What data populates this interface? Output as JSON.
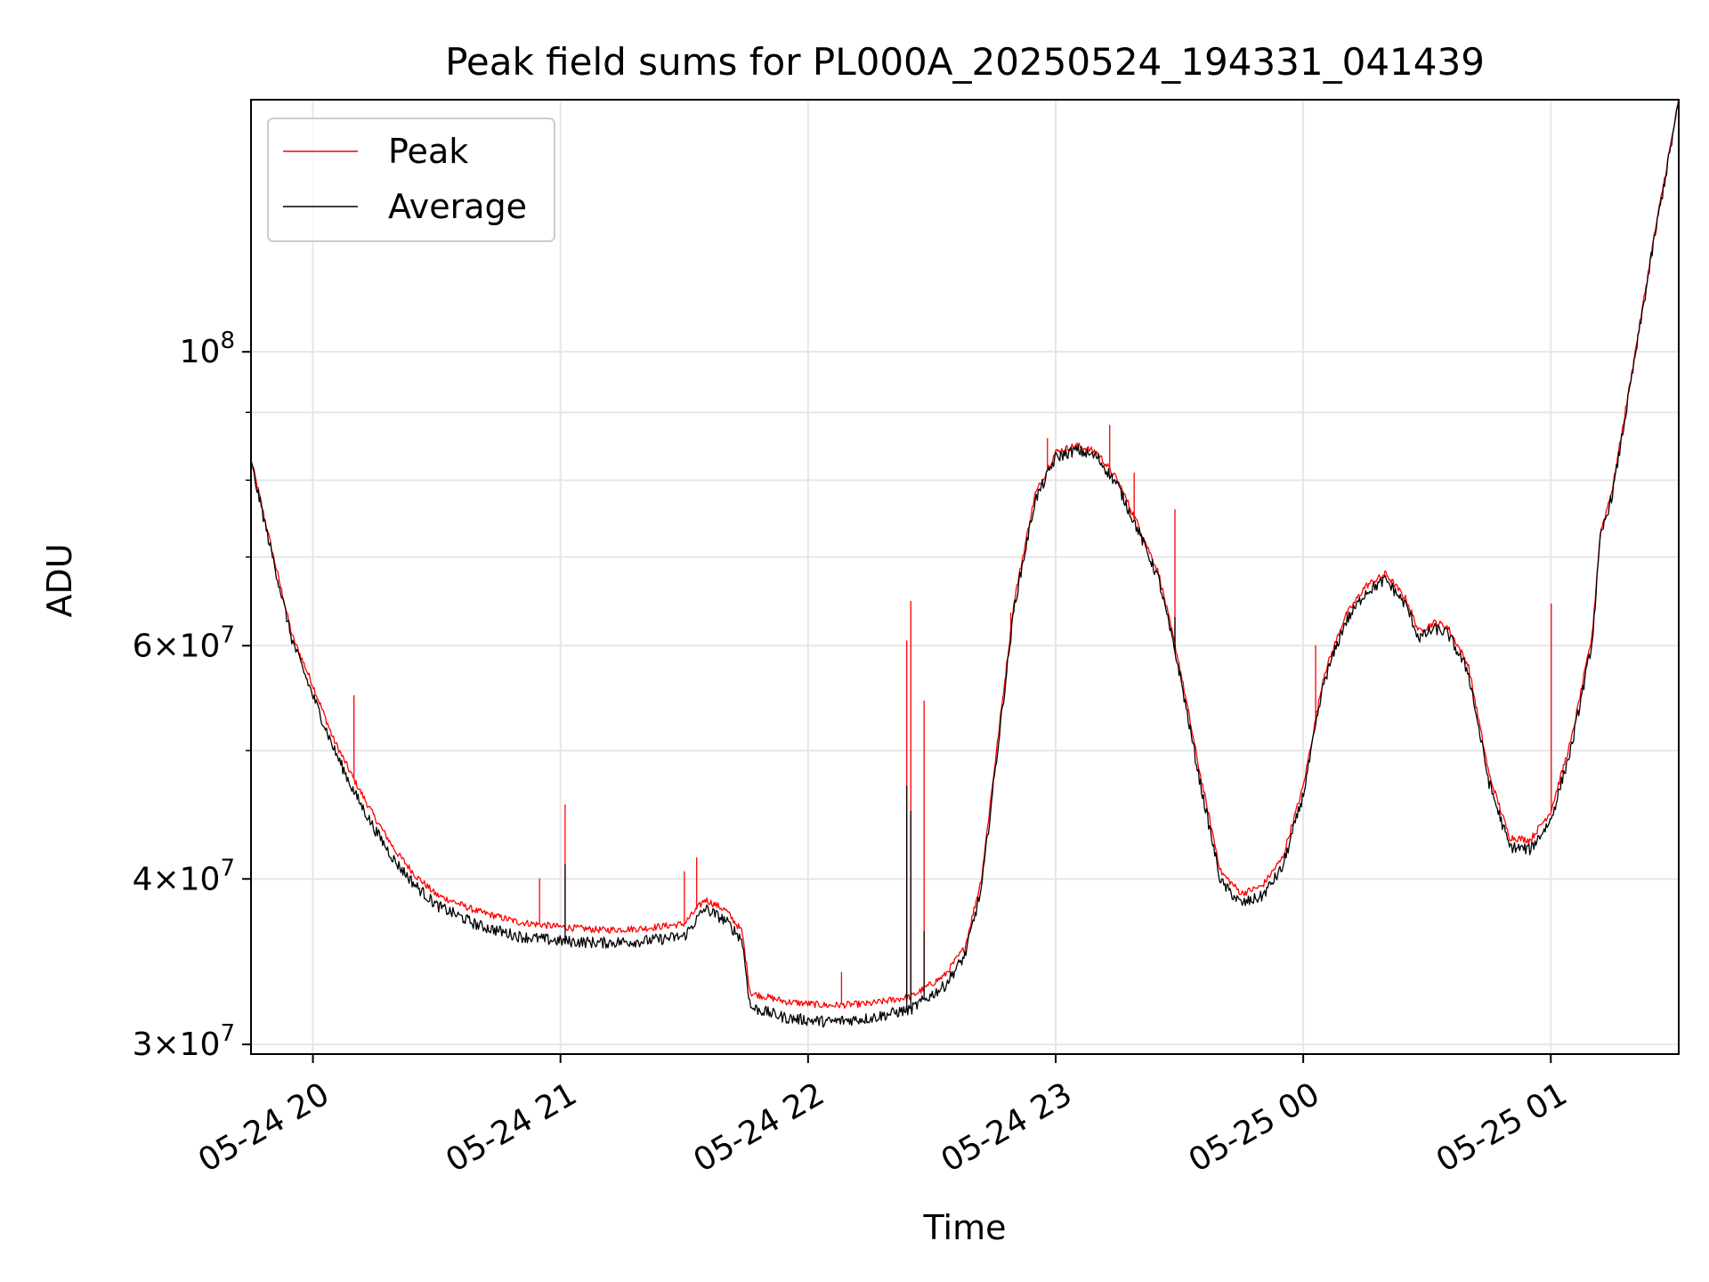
{
  "chart_data": {
    "type": "line",
    "title": "Peak field sums for PL000A_20250524_194331_041439",
    "xlabel": "Time",
    "ylabel": "ADU",
    "y_scale": "log",
    "grid": true,
    "legend_placement": "top-left",
    "xlim": [
      "2025-05-24 19:45",
      "2025-05-25 01:31"
    ],
    "ylim": [
      29500000,
      155000000
    ],
    "x_tick_labels": [
      {
        "t": "2025-05-24 20:00",
        "label": "05-24 20"
      },
      {
        "t": "2025-05-24 21:00",
        "label": "05-24 21"
      },
      {
        "t": "2025-05-24 22:00",
        "label": "05-24 22"
      },
      {
        "t": "2025-05-24 23:00",
        "label": "05-24 23"
      },
      {
        "t": "2025-05-25 00:00",
        "label": "05-25 00"
      },
      {
        "t": "2025-05-25 01:00",
        "label": "05-25 01"
      }
    ],
    "y_tick_labels": [
      {
        "v": 30000000,
        "mant": "3",
        "exp": "7"
      },
      {
        "v": 40000000,
        "mant": "4",
        "exp": "7"
      },
      {
        "v": 60000000,
        "mant": "6",
        "exp": "7"
      },
      {
        "v": 100000000,
        "mant": "",
        "exp": "8"
      }
    ],
    "y_minor_ticks": [
      50000000,
      70000000,
      80000000,
      90000000
    ],
    "series": [
      {
        "name": "Peak",
        "color": "#ff0000",
        "points": [
          [
            "2025-05-24 19:45",
            83000000
          ],
          [
            "2025-05-24 19:50",
            71000000
          ],
          [
            "2025-05-24 19:55",
            61000000
          ],
          [
            "2025-05-24 20:00",
            56000000
          ],
          [
            "2025-05-24 20:05",
            51000000
          ],
          [
            "2025-05-24 20:10",
            47500000
          ],
          [
            "2025-05-24 20:15",
            44500000
          ],
          [
            "2025-05-24 20:20",
            42000000
          ],
          [
            "2025-05-24 20:25",
            40200000
          ],
          [
            "2025-05-24 20:30",
            38900000
          ],
          [
            "2025-05-24 20:40",
            37800000
          ],
          [
            "2025-05-24 20:50",
            37100000
          ],
          [
            "2025-05-24 21:00",
            36800000
          ],
          [
            "2025-05-24 21:10",
            36600000
          ],
          [
            "2025-05-24 21:20",
            36700000
          ],
          [
            "2025-05-24 21:30",
            37000000
          ],
          [
            "2025-05-24 21:35",
            38600000
          ],
          [
            "2025-05-24 21:40",
            37900000
          ],
          [
            "2025-05-24 21:44",
            36500000
          ],
          [
            "2025-05-24 21:46",
            32800000
          ],
          [
            "2025-05-24 21:55",
            32300000
          ],
          [
            "2025-05-24 22:05",
            32100000
          ],
          [
            "2025-05-24 22:15",
            32200000
          ],
          [
            "2025-05-24 22:25",
            32600000
          ],
          [
            "2025-05-24 22:33",
            33800000
          ],
          [
            "2025-05-24 22:38",
            35500000
          ],
          [
            "2025-05-24 22:42",
            40000000
          ],
          [
            "2025-05-24 22:46",
            51000000
          ],
          [
            "2025-05-24 22:50",
            65000000
          ],
          [
            "2025-05-24 22:55",
            78000000
          ],
          [
            "2025-05-24 23:00",
            84000000
          ],
          [
            "2025-05-24 23:05",
            85000000
          ],
          [
            "2025-05-24 23:10",
            84000000
          ],
          [
            "2025-05-24 23:15",
            80000000
          ],
          [
            "2025-05-24 23:20",
            74000000
          ],
          [
            "2025-05-24 23:25",
            68000000
          ],
          [
            "2025-05-24 23:30",
            58000000
          ],
          [
            "2025-05-24 23:35",
            48000000
          ],
          [
            "2025-05-24 23:40",
            40500000
          ],
          [
            "2025-05-24 23:45",
            39000000
          ],
          [
            "2025-05-24 23:50",
            39500000
          ],
          [
            "2025-05-24 23:55",
            41500000
          ],
          [
            "2025-05-25 00:00",
            47000000
          ],
          [
            "2025-05-25 00:05",
            57000000
          ],
          [
            "2025-05-25 00:10",
            63000000
          ],
          [
            "2025-05-25 00:15",
            66500000
          ],
          [
            "2025-05-25 00:20",
            68000000
          ],
          [
            "2025-05-25 00:25",
            65000000
          ],
          [
            "2025-05-25 00:28",
            61500000
          ],
          [
            "2025-05-25 00:32",
            62500000
          ],
          [
            "2025-05-25 00:35",
            62000000
          ],
          [
            "2025-05-25 00:40",
            58000000
          ],
          [
            "2025-05-25 00:45",
            48000000
          ],
          [
            "2025-05-25 00:50",
            43000000
          ],
          [
            "2025-05-25 00:55",
            42800000
          ],
          [
            "2025-05-25 01:00",
            45000000
          ],
          [
            "2025-05-25 01:05",
            51000000
          ],
          [
            "2025-05-25 01:10",
            61000000
          ],
          [
            "2025-05-25 01:12",
            73000000
          ],
          [
            "2025-05-25 01:15",
            79000000
          ],
          [
            "2025-05-25 01:20",
            98000000
          ],
          [
            "2025-05-25 01:25",
            122000000
          ],
          [
            "2025-05-25 01:31",
            155000000
          ]
        ],
        "spikes": [
          [
            "2025-05-24 20:10",
            55000000
          ],
          [
            "2025-05-24 20:55",
            40000000
          ],
          [
            "2025-05-24 21:01",
            45500000
          ],
          [
            "2025-05-24 21:30",
            40500000
          ],
          [
            "2025-05-24 21:33",
            41500000
          ],
          [
            "2025-05-24 22:08",
            34000000
          ],
          [
            "2025-05-24 22:24",
            60500000
          ],
          [
            "2025-05-24 22:25",
            64800000
          ],
          [
            "2025-05-24 22:28",
            54500000
          ],
          [
            "2025-05-24 22:49",
            63500000
          ],
          [
            "2025-05-24 22:58",
            86000000
          ],
          [
            "2025-05-24 23:13",
            88000000
          ],
          [
            "2025-05-24 23:19",
            81000000
          ],
          [
            "2025-05-24 23:29",
            76000000
          ],
          [
            "2025-05-25 00:03",
            60000000
          ],
          [
            "2025-05-25 01:00",
            64500000
          ]
        ]
      },
      {
        "name": "Average",
        "color": "#000000",
        "points": [
          [
            "2025-05-24 19:45",
            82500000
          ],
          [
            "2025-05-24 19:50",
            70500000
          ],
          [
            "2025-05-24 19:55",
            60500000
          ],
          [
            "2025-05-24 20:00",
            55000000
          ],
          [
            "2025-05-24 20:05",
            50200000
          ],
          [
            "2025-05-24 20:10",
            46500000
          ],
          [
            "2025-05-24 20:15",
            43600000
          ],
          [
            "2025-05-24 20:20",
            41200000
          ],
          [
            "2025-05-24 20:25",
            39500000
          ],
          [
            "2025-05-24 20:30",
            38200000
          ],
          [
            "2025-05-24 20:40",
            36900000
          ],
          [
            "2025-05-24 20:50",
            36200000
          ],
          [
            "2025-05-24 21:00",
            35900000
          ],
          [
            "2025-05-24 21:10",
            35800000
          ],
          [
            "2025-05-24 21:20",
            35900000
          ],
          [
            "2025-05-24 21:30",
            36200000
          ],
          [
            "2025-05-24 21:35",
            38000000
          ],
          [
            "2025-05-24 21:40",
            37200000
          ],
          [
            "2025-05-24 21:44",
            36000000
          ],
          [
            "2025-05-24 21:46",
            32000000
          ],
          [
            "2025-05-24 21:55",
            31400000
          ],
          [
            "2025-05-24 22:05",
            31200000
          ],
          [
            "2025-05-24 22:15",
            31400000
          ],
          [
            "2025-05-24 22:25",
            31900000
          ],
          [
            "2025-05-24 22:33",
            33200000
          ],
          [
            "2025-05-24 22:38",
            35000000
          ],
          [
            "2025-05-24 22:42",
            39300000
          ],
          [
            "2025-05-24 22:46",
            50300000
          ],
          [
            "2025-05-24 22:50",
            64300000
          ],
          [
            "2025-05-24 22:55",
            77200000
          ],
          [
            "2025-05-24 23:00",
            83200000
          ],
          [
            "2025-05-24 23:05",
            84300000
          ],
          [
            "2025-05-24 23:10",
            83300000
          ],
          [
            "2025-05-24 23:15",
            79300000
          ],
          [
            "2025-05-24 23:20",
            73300000
          ],
          [
            "2025-05-24 23:25",
            67300000
          ],
          [
            "2025-05-24 23:30",
            57300000
          ],
          [
            "2025-05-24 23:35",
            47300000
          ],
          [
            "2025-05-24 23:40",
            39800000
          ],
          [
            "2025-05-24 23:45",
            38300000
          ],
          [
            "2025-05-24 23:50",
            38800000
          ],
          [
            "2025-05-24 23:55",
            40800000
          ],
          [
            "2025-05-25 00:00",
            46300000
          ],
          [
            "2025-05-25 00:05",
            56300000
          ],
          [
            "2025-05-25 00:10",
            62300000
          ],
          [
            "2025-05-25 00:15",
            65800000
          ],
          [
            "2025-05-25 00:20",
            67300000
          ],
          [
            "2025-05-25 00:25",
            64300000
          ],
          [
            "2025-05-25 00:28",
            60800000
          ],
          [
            "2025-05-25 00:32",
            61800000
          ],
          [
            "2025-05-25 00:35",
            61300000
          ],
          [
            "2025-05-25 00:40",
            57300000
          ],
          [
            "2025-05-25 00:45",
            47300000
          ],
          [
            "2025-05-25 00:50",
            42300000
          ],
          [
            "2025-05-25 00:55",
            42100000
          ],
          [
            "2025-05-25 01:00",
            44300000
          ],
          [
            "2025-05-25 01:05",
            50300000
          ],
          [
            "2025-05-25 01:10",
            60300000
          ],
          [
            "2025-05-25 01:12",
            72300000
          ],
          [
            "2025-05-25 01:15",
            78300000
          ],
          [
            "2025-05-25 01:20",
            97300000
          ],
          [
            "2025-05-25 01:25",
            121300000
          ],
          [
            "2025-05-25 01:31",
            154300000
          ]
        ],
        "spikes": [
          [
            "2025-05-24 21:01",
            41000000
          ],
          [
            "2025-05-24 22:24",
            47000000
          ],
          [
            "2025-05-24 22:25",
            45000000
          ],
          [
            "2025-05-24 22:28",
            36500000
          ],
          [
            "2025-05-24 23:29",
            63000000
          ]
        ]
      }
    ]
  }
}
